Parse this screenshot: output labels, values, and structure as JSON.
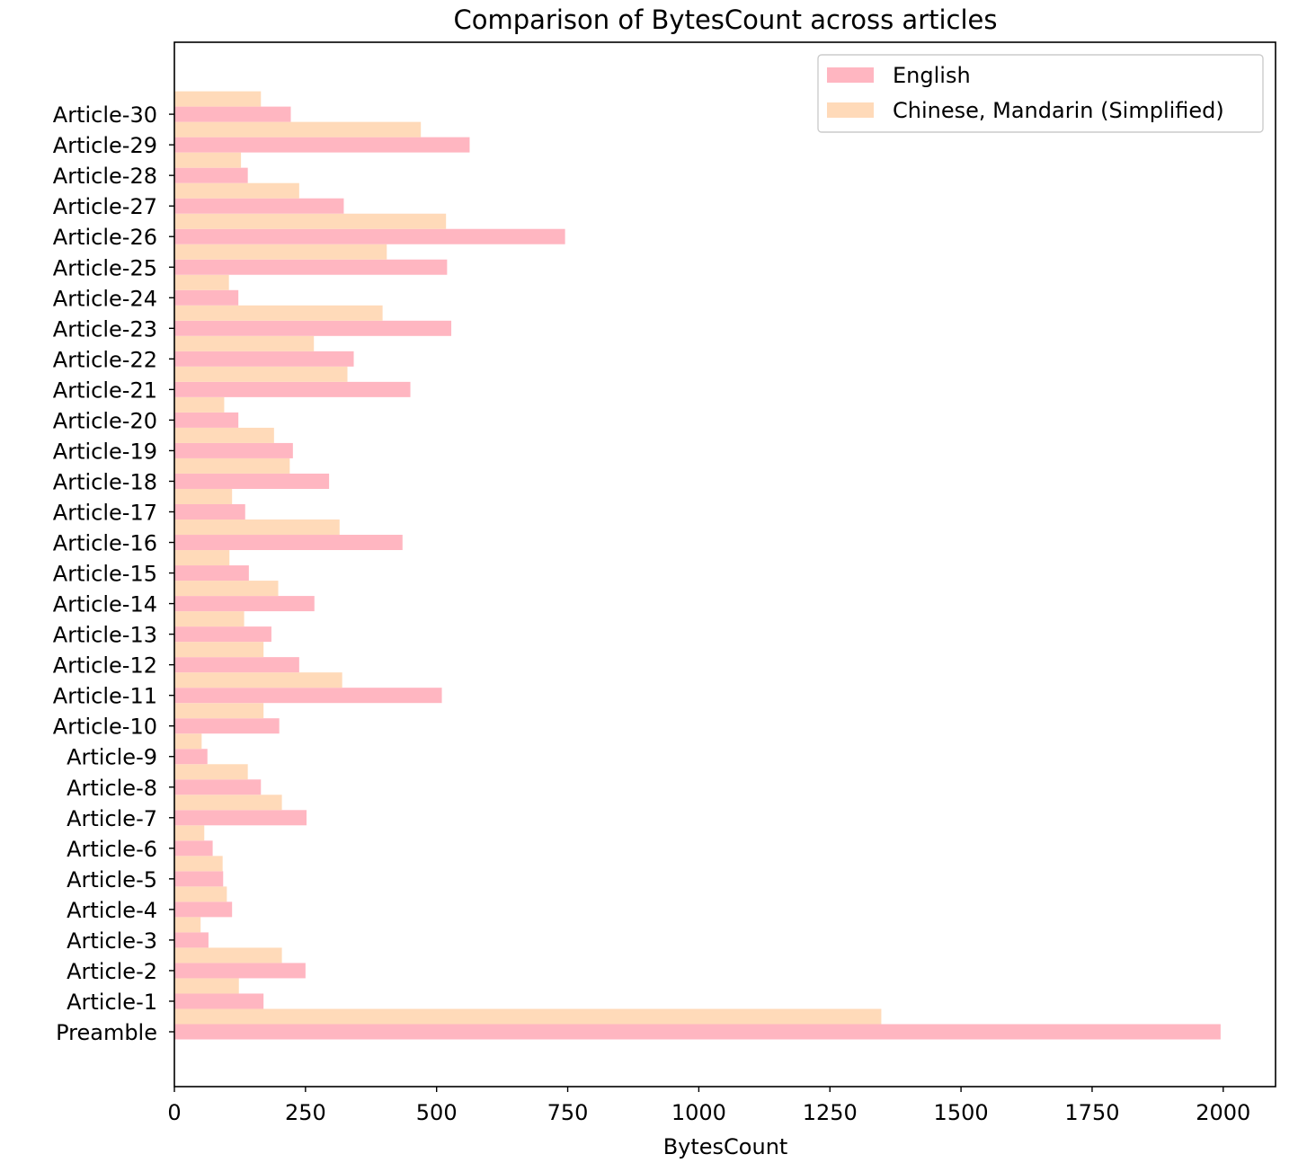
{
  "chart_data": {
    "type": "bar",
    "orientation": "horizontal",
    "title": "Comparison of BytesCount across articles",
    "xlabel": "BytesCount",
    "ylabel": "",
    "xlim": [
      0,
      2100
    ],
    "xticks": [
      0,
      250,
      500,
      750,
      1000,
      1250,
      1500,
      1750,
      2000
    ],
    "grid": false,
    "legend_position": "upper right",
    "categories": [
      "Preamble",
      "Article-1",
      "Article-2",
      "Article-3",
      "Article-4",
      "Article-5",
      "Article-6",
      "Article-7",
      "Article-8",
      "Article-9",
      "Article-10",
      "Article-11",
      "Article-12",
      "Article-13",
      "Article-14",
      "Article-15",
      "Article-16",
      "Article-17",
      "Article-18",
      "Article-19",
      "Article-20",
      "Article-21",
      "Article-22",
      "Article-23",
      "Article-24",
      "Article-25",
      "Article-26",
      "Article-27",
      "Article-28",
      "Article-29",
      "Article-30"
    ],
    "series": [
      {
        "name": "English",
        "color": "#ffb6c1",
        "values": [
          1995,
          170,
          250,
          65,
          110,
          93,
          73,
          252,
          165,
          63,
          200,
          510,
          238,
          185,
          267,
          142,
          435,
          135,
          295,
          226,
          122,
          450,
          342,
          528,
          122,
          520,
          745,
          323,
          140,
          563,
          222
        ]
      },
      {
        "name": "Chinese, Mandarin (Simplified)",
        "color": "#ffdab9",
        "values": [
          1348,
          123,
          205,
          50,
          100,
          92,
          57,
          205,
          140,
          52,
          170,
          320,
          170,
          133,
          198,
          105,
          315,
          110,
          220,
          190,
          95,
          330,
          266,
          397,
          104,
          405,
          518,
          238,
          127,
          470,
          165
        ]
      }
    ]
  }
}
